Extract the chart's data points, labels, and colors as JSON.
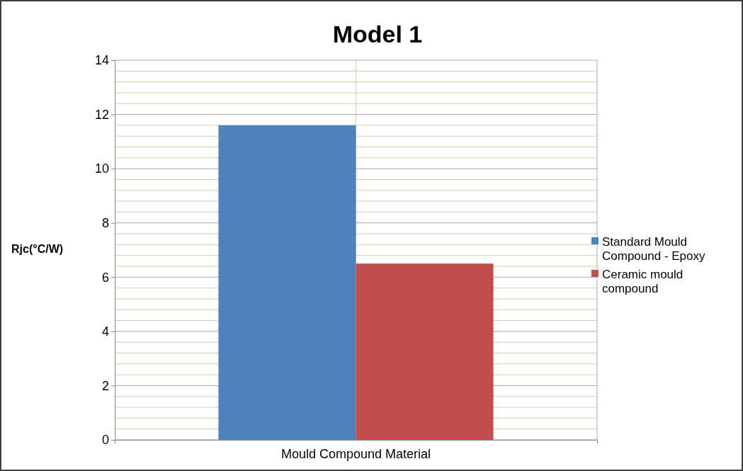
{
  "chart_data": {
    "type": "bar",
    "title": "Model 1",
    "ylabel": "Rjc(°C/W)",
    "categories": [
      "Mould Compound Material"
    ],
    "series": [
      {
        "name": "Standard Mould Compound - Epoxy",
        "color": "#4f81bd",
        "values": [
          11.6
        ]
      },
      {
        "name": "Ceramic mould compound",
        "color": "#c0504d",
        "values": [
          6.5
        ]
      }
    ],
    "ylim": [
      0,
      14
    ],
    "yticks": [
      0,
      {
        "value": 0.4,
        "label": null
      },
      {
        "value": 0.8,
        "label": null
      },
      {
        "value": 1.2,
        "label": null
      },
      {
        "value": 1.6,
        "label": null
      },
      2,
      {
        "value": 2.4,
        "label": null
      },
      {
        "value": 2.8,
        "label": null
      },
      {
        "value": 3.2,
        "label": null
      },
      {
        "value": 3.6,
        "label": null
      },
      4,
      {
        "value": 4.4,
        "label": null
      },
      {
        "value": 4.8,
        "label": null
      },
      {
        "value": 5.2,
        "label": null
      },
      {
        "value": 5.6,
        "label": null
      },
      6,
      {
        "value": 6.4,
        "label": null
      },
      {
        "value": 6.8,
        "label": null
      },
      {
        "value": 7.2,
        "label": null
      },
      {
        "value": 7.6,
        "label": null
      },
      8,
      {
        "value": 8.4,
        "label": null
      },
      {
        "value": 8.8,
        "label": null
      },
      {
        "value": 9.2,
        "label": null
      },
      {
        "value": 9.6,
        "label": null
      },
      10,
      {
        "value": 10.4,
        "label": null
      },
      {
        "value": 10.8,
        "label": null
      },
      {
        "value": 11.2,
        "label": null
      },
      {
        "value": 11.6,
        "label": null
      },
      12,
      {
        "value": 12.4,
        "label": null
      },
      {
        "value": 12.8,
        "label": null
      },
      {
        "value": 13.2,
        "label": null
      },
      {
        "value": 13.6,
        "label": null
      },
      14
    ],
    "grid": true,
    "legend": "right"
  }
}
